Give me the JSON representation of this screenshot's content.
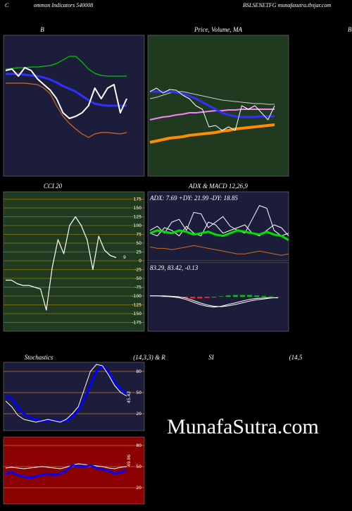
{
  "header": {
    "left": "C",
    "center": "ommon Indicators 540008",
    "right": "BSLSENETFG munafasutra.tbsjar.com",
    "edge": "B"
  },
  "watermark": "MunafaSutra.com",
  "chart_data": [
    {
      "type": "line",
      "title": "B",
      "ylim": [
        0,
        100
      ],
      "series": [
        {
          "color": "#00c800",
          "width": 1.2,
          "values": [
            76,
            76.5,
            77,
            77,
            77.5,
            77.5,
            78,
            78.5,
            80,
            82.5,
            85,
            85,
            81,
            76,
            73,
            71.5,
            71,
            71,
            71,
            71
          ]
        },
        {
          "color": "#3030ff",
          "width": 3,
          "values": [
            72.5,
            72.5,
            72.5,
            72,
            71.5,
            71,
            70,
            68.5,
            66.5,
            64,
            62,
            60,
            57,
            54,
            51.5,
            50.5,
            50,
            50,
            50,
            50
          ]
        },
        {
          "color": "#d2691e",
          "width": 1.2,
          "values": [
            66,
            66,
            66,
            66,
            65.5,
            65,
            62.5,
            58.5,
            50,
            42.5,
            37.5,
            33.5,
            30,
            27.5,
            30,
            31,
            31,
            30.5,
            30,
            31
          ]
        },
        {
          "color": "#ffffff",
          "width": 2,
          "values": [
            75,
            76,
            71,
            77,
            75,
            69,
            65,
            61,
            55,
            45,
            41,
            42.5,
            45,
            50,
            62.5,
            55,
            62.5,
            65,
            45,
            55
          ]
        }
      ]
    },
    {
      "type": "line",
      "title": "Price, Volume, MA",
      "ylim": [
        0,
        100
      ],
      "series": [
        {
          "color": "#ff8c00",
          "width": 4,
          "values": [
            24,
            25,
            26,
            27,
            27.5,
            28,
            29,
            29.5,
            30,
            30.5,
            31,
            32,
            32.5,
            33.5,
            34,
            34.5,
            35,
            35.5,
            36,
            36.5
          ]
        },
        {
          "color": "#ff80ff",
          "width": 2,
          "values": [
            40,
            41,
            42,
            42.5,
            43.5,
            44,
            45,
            45,
            45.5,
            46,
            46.5,
            46.5,
            47,
            47,
            47.5,
            47.5,
            47.5,
            47.5,
            47.5,
            47.5
          ]
        },
        {
          "color": "#cccccc",
          "width": 1,
          "values": [
            55,
            56,
            57.5,
            59,
            60,
            60,
            59,
            58,
            57,
            56,
            55,
            54,
            53.5,
            53,
            52.5,
            52,
            51.5,
            51.5,
            51,
            51
          ]
        },
        {
          "color": "#3030ff",
          "width": 3,
          "values": [
            60,
            60,
            60,
            60,
            59.5,
            58.5,
            57,
            55,
            52.5,
            50,
            47.5,
            45,
            43.5,
            42.5,
            42,
            42,
            42,
            42.5,
            42.5,
            42.5
          ]
        },
        {
          "color": "#ffffff",
          "width": 1,
          "values": [
            60,
            62.5,
            59,
            61.5,
            61,
            57.5,
            55,
            50,
            47.5,
            35,
            36,
            32.5,
            35,
            32.5,
            50,
            47.5,
            50,
            45,
            40,
            50
          ]
        }
      ]
    },
    {
      "type": "line",
      "title": "CCI 20",
      "ylim": [
        -200,
        200
      ],
      "yticks": [
        175,
        150,
        125,
        100,
        75,
        50,
        25,
        0,
        -25,
        -50,
        -75,
        -100,
        -125,
        -150,
        -175
      ],
      "last_label": "9",
      "series": [
        {
          "color": "#ffffff",
          "width": 1.2,
          "values": [
            -55,
            -55,
            -65,
            -70,
            -70,
            -75,
            -80,
            -140,
            -20,
            60,
            20,
            100,
            125,
            100,
            60,
            -25,
            70,
            30,
            15,
            9
          ]
        }
      ]
    },
    {
      "type": "line",
      "title": "ADX  & MACD 12,26,9",
      "annotation": "ADX: 7.69 +DY: 21.99 -DY: 18.85",
      "ylim": [
        0,
        50
      ],
      "series": [
        {
          "color": "#d2691e",
          "width": 1,
          "values": [
            10,
            9,
            9,
            8,
            9,
            10,
            11,
            10,
            9,
            8,
            7,
            6,
            5,
            5,
            6,
            7,
            6,
            5,
            4,
            5
          ]
        },
        {
          "color": "#ffffff",
          "width": 1,
          "values": [
            22,
            25,
            20,
            28,
            30,
            22,
            35,
            34,
            24,
            28,
            32,
            25,
            22,
            20,
            30,
            40,
            38,
            22,
            18,
            20
          ]
        },
        {
          "color": "#ffffff",
          "width": 1,
          "values": [
            20,
            18,
            24,
            22,
            18,
            25,
            20,
            18,
            28,
            26,
            20,
            22,
            24,
            26,
            20,
            18,
            22,
            26,
            24,
            18
          ]
        },
        {
          "color": "#00e000",
          "width": 3,
          "values": [
            20,
            22,
            21,
            20,
            22,
            21,
            19,
            20,
            21,
            19,
            18,
            20,
            22,
            21,
            20,
            19,
            21,
            19,
            18,
            15
          ]
        }
      ]
    },
    {
      "type": "line",
      "annotation": "83.29, 83.42, -0.13",
      "ylim": [
        -4,
        4
      ],
      "series": [
        {
          "style": "bar",
          "color": "#ff2020",
          "values": [
            0,
            0,
            -0.05,
            -0.05,
            -0.1,
            -0.15,
            -0.2,
            -0.2,
            -0.15,
            -0.1,
            0.05,
            0.15,
            0.2,
            0.2,
            0.2,
            0.15,
            0.1,
            0.05,
            -0.03
          ]
        },
        {
          "color": "#ffffff",
          "width": 1,
          "values": [
            0.1,
            0.1,
            0.1,
            0.05,
            0,
            -0.15,
            -0.4,
            -0.7,
            -0.95,
            -1.1,
            -1.15,
            -1.05,
            -0.9,
            -0.7,
            -0.5,
            -0.35,
            -0.25,
            -0.15,
            -0.1
          ]
        },
        {
          "color": "#ffffff",
          "width": 1,
          "values": [
            0.1,
            0.1,
            0.05,
            0,
            -0.1,
            -0.3,
            -0.6,
            -0.9,
            -1.1,
            -1.2,
            -1.1,
            -0.9,
            -0.7,
            -0.5,
            -0.3,
            -0.2,
            -0.15,
            -0.1,
            -0.13
          ]
        }
      ]
    },
    {
      "type": "line",
      "title": "Stochastics",
      "subtitle": "(14,3,3) & R",
      "ylim": [
        0,
        100
      ],
      "yticks": [
        80,
        50,
        20
      ],
      "last_label": "45.42",
      "series": [
        {
          "color": "#0000ff",
          "width": 3,
          "values": [
            45,
            42,
            30,
            20,
            15,
            12,
            10,
            10,
            11,
            10,
            10,
            15,
            25,
            40,
            60,
            80,
            88,
            80,
            65,
            55,
            48
          ]
        },
        {
          "color": "#ffffff",
          "width": 1,
          "values": [
            38,
            30,
            18,
            12,
            10,
            8,
            10,
            12,
            10,
            8,
            12,
            20,
            30,
            55,
            80,
            90,
            88,
            75,
            60,
            50,
            45
          ]
        }
      ]
    },
    {
      "type": "line",
      "title": "SI",
      "subtitle": "(14,5",
      "ylim": [
        0,
        100
      ],
      "yticks": [
        80,
        50,
        20
      ],
      "last_label": "49.96",
      "series": [
        {
          "color": "#ffffff",
          "width": 1,
          "values": [
            48,
            49,
            48,
            47,
            48,
            49,
            50,
            49,
            48,
            47,
            49,
            52,
            54,
            53,
            52,
            51,
            50,
            48,
            47,
            49,
            50
          ]
        },
        {
          "color": "#0000ff",
          "width": 3,
          "values": [
            40,
            42,
            38,
            36,
            34,
            36,
            38,
            40,
            38,
            40,
            44,
            52,
            50,
            50,
            52,
            48,
            46,
            44,
            40,
            42,
            45
          ]
        }
      ]
    }
  ]
}
